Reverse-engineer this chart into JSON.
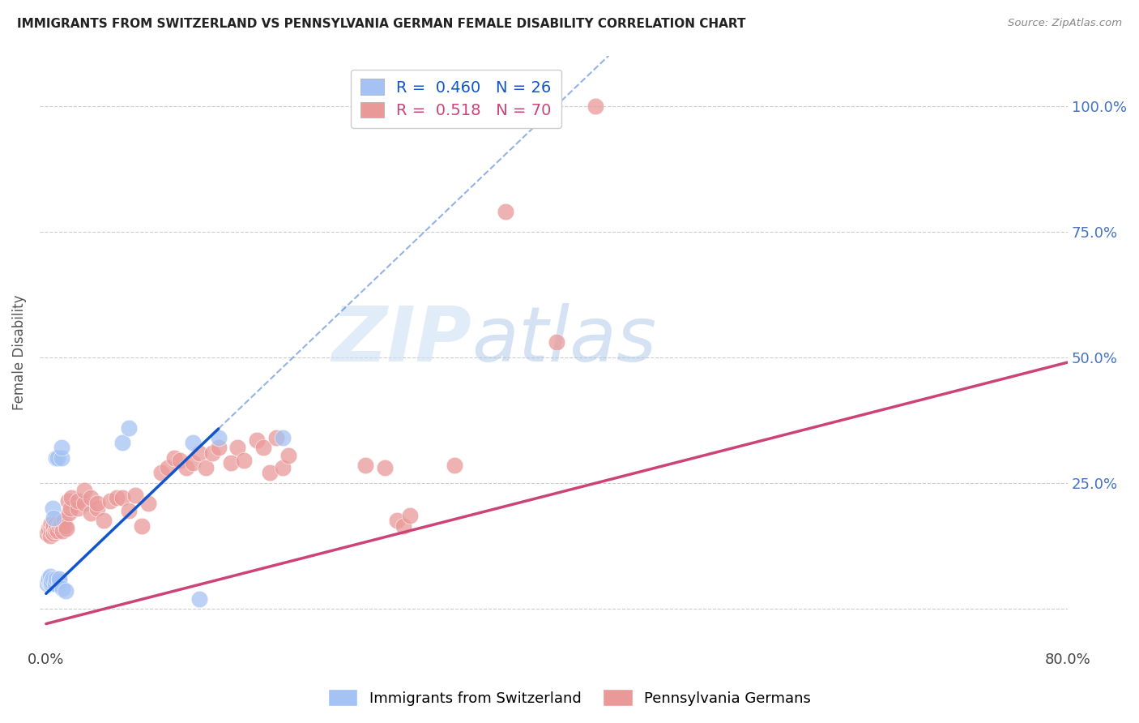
{
  "title": "IMMIGRANTS FROM SWITZERLAND VS PENNSYLVANIA GERMAN FEMALE DISABILITY CORRELATION CHART",
  "source": "Source: ZipAtlas.com",
  "ylabel": "Female Disability",
  "r_swiss": 0.46,
  "n_swiss": 26,
  "r_pa": 0.518,
  "n_pa": 70,
  "swiss_color": "#a4c2f4",
  "pa_color": "#ea9999",
  "swiss_line_color": "#1155cc",
  "pa_line_color": "#cc4477",
  "swiss_scatter_x": [
    0.001,
    0.002,
    0.002,
    0.003,
    0.003,
    0.004,
    0.004,
    0.005,
    0.005,
    0.006,
    0.007,
    0.008,
    0.008,
    0.009,
    0.01,
    0.01,
    0.012,
    0.012,
    0.013,
    0.015,
    0.06,
    0.065,
    0.115,
    0.12,
    0.135,
    0.185
  ],
  "swiss_scatter_y": [
    0.05,
    0.055,
    0.06,
    0.05,
    0.065,
    0.05,
    0.055,
    0.06,
    0.2,
    0.18,
    0.05,
    0.06,
    0.3,
    0.3,
    0.055,
    0.06,
    0.3,
    0.32,
    0.04,
    0.035,
    0.33,
    0.36,
    0.33,
    0.02,
    0.34,
    0.34
  ],
  "pa_scatter_x": [
    0.001,
    0.002,
    0.002,
    0.003,
    0.003,
    0.004,
    0.004,
    0.005,
    0.005,
    0.006,
    0.006,
    0.007,
    0.008,
    0.008,
    0.009,
    0.01,
    0.011,
    0.012,
    0.013,
    0.014,
    0.015,
    0.016,
    0.017,
    0.018,
    0.019,
    0.02,
    0.025,
    0.025,
    0.03,
    0.03,
    0.035,
    0.035,
    0.04,
    0.04,
    0.045,
    0.05,
    0.055,
    0.06,
    0.065,
    0.07,
    0.075,
    0.08,
    0.09,
    0.095,
    0.1,
    0.105,
    0.11,
    0.115,
    0.12,
    0.125,
    0.13,
    0.135,
    0.145,
    0.15,
    0.155,
    0.165,
    0.17,
    0.175,
    0.18,
    0.185,
    0.19,
    0.25,
    0.265,
    0.275,
    0.28,
    0.285,
    0.32,
    0.36,
    0.4,
    0.43
  ],
  "pa_scatter_y": [
    0.15,
    0.16,
    0.155,
    0.145,
    0.165,
    0.17,
    0.155,
    0.16,
    0.17,
    0.15,
    0.165,
    0.155,
    0.16,
    0.17,
    0.155,
    0.165,
    0.17,
    0.17,
    0.155,
    0.175,
    0.165,
    0.16,
    0.215,
    0.19,
    0.2,
    0.22,
    0.2,
    0.215,
    0.21,
    0.235,
    0.19,
    0.22,
    0.2,
    0.21,
    0.175,
    0.215,
    0.22,
    0.22,
    0.195,
    0.225,
    0.165,
    0.21,
    0.27,
    0.28,
    0.3,
    0.295,
    0.28,
    0.29,
    0.31,
    0.28,
    0.31,
    0.32,
    0.29,
    0.32,
    0.295,
    0.335,
    0.32,
    0.27,
    0.34,
    0.28,
    0.305,
    0.285,
    0.28,
    0.175,
    0.165,
    0.185,
    0.285,
    0.79,
    0.53,
    1.0
  ],
  "watermark_zip": "ZIP",
  "watermark_atlas": "atlas"
}
